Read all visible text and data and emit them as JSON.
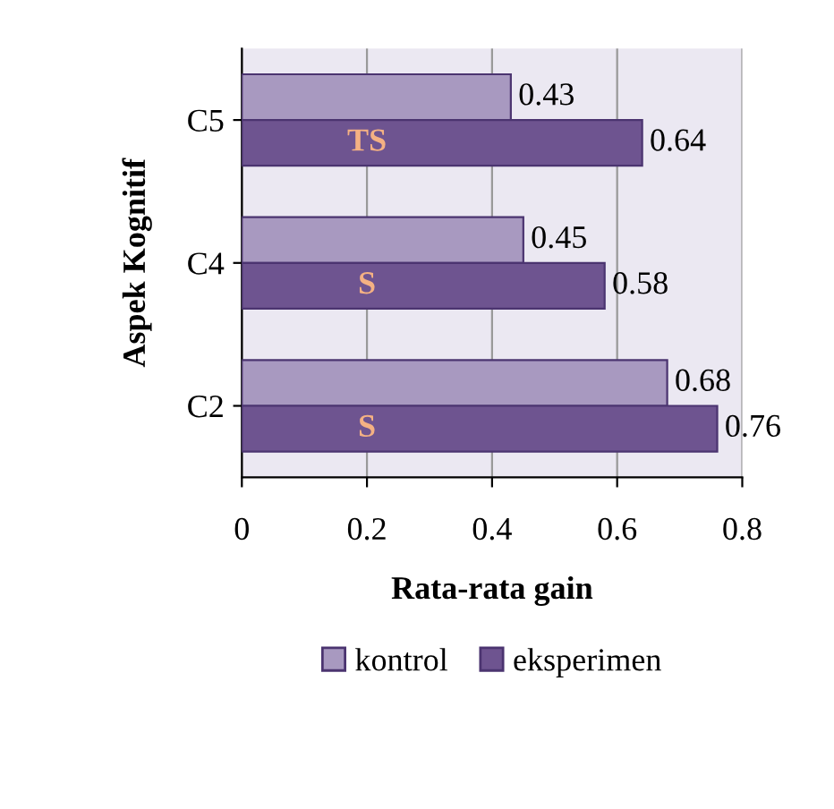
{
  "chart_data": {
    "type": "bar",
    "orientation": "horizontal",
    "categories": [
      "C5",
      "C4",
      "C2"
    ],
    "series": [
      {
        "name": "kontrol",
        "color": "#a899c0",
        "values": [
          0.43,
          0.45,
          0.68
        ]
      },
      {
        "name": "eksperimen",
        "color": "#6e5490",
        "values": [
          0.64,
          0.58,
          0.76
        ]
      }
    ],
    "xlabel": "Rata-rata gain",
    "ylabel": "Aspek Kognitif",
    "xlim": [
      0,
      0.8
    ],
    "xticks": [
      0,
      0.2,
      0.4,
      0.6,
      0.8
    ],
    "grid": "x",
    "data_labels": true,
    "legend": "bottom",
    "annotations": [
      "TS",
      "S",
      "S"
    ]
  }
}
